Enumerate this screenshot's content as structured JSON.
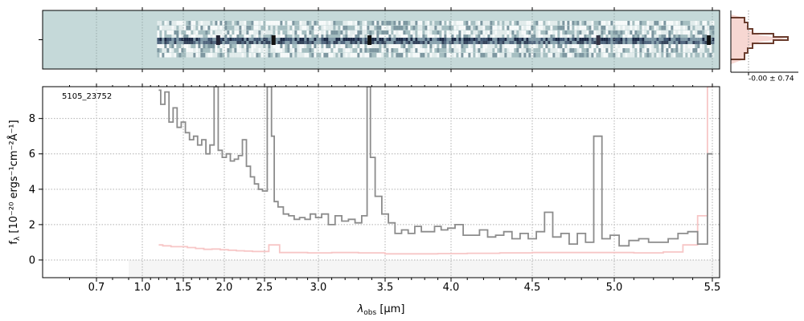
{
  "chart_data": {
    "type": "line",
    "object_id": "5105_23752",
    "xlabel_symbol": "λ",
    "xlabel_sub": "obs",
    "xlabel_unit": " [μm]",
    "ylabel_main": "f",
    "ylabel_sub": "λ",
    "ylabel_unit": " [10⁻²⁰ ergs⁻¹cm⁻²Å⁻¹]",
    "x_scale": "nonlinear (prism resolution)",
    "x_ticks": [
      "0.7",
      "1.0",
      "1.5",
      "2.0",
      "2.5",
      "3.0",
      "3.5",
      "4.0",
      "4.5",
      "5.0",
      "5.5"
    ],
    "x_tick_values": [
      0.7,
      1.0,
      1.5,
      2.0,
      2.5,
      3.0,
      3.5,
      4.0,
      4.5,
      5.0,
      5.5
    ],
    "xlim": [
      0.5,
      5.55
    ],
    "ylim": [
      -1.0,
      9.8
    ],
    "y_ticks": [
      "0",
      "2",
      "4",
      "6",
      "8"
    ],
    "y_tick_values": [
      0,
      2,
      4,
      6,
      8
    ],
    "grid": true,
    "colors": {
      "flux": "#8c8c8c",
      "error": "#f7c6c6",
      "hist_line": "#6b3d2e",
      "hist_fill": "#f7d7d2",
      "twod_bg": "#c5d9d9"
    },
    "series": [
      {
        "role": "flux",
        "x": [
          1.2,
          1.25,
          1.3,
          1.35,
          1.4,
          1.45,
          1.5,
          1.55,
          1.6,
          1.65,
          1.7,
          1.75,
          1.8,
          1.85,
          1.9,
          1.95,
          2.0,
          2.05,
          2.1,
          2.15,
          2.2,
          2.25,
          2.3,
          2.35,
          2.4,
          2.45,
          2.5,
          2.55,
          2.58,
          2.6,
          2.65,
          2.7,
          2.75,
          2.8,
          2.85,
          2.9,
          2.95,
          3.0,
          3.05,
          3.1,
          3.15,
          3.2,
          3.25,
          3.3,
          3.35,
          3.38,
          3.4,
          3.45,
          3.5,
          3.55,
          3.6,
          3.65,
          3.7,
          3.75,
          3.8,
          3.85,
          3.9,
          3.95,
          4.0,
          4.05,
          4.1,
          4.15,
          4.2,
          4.25,
          4.3,
          4.35,
          4.4,
          4.45,
          4.5,
          4.55,
          4.6,
          4.65,
          4.7,
          4.75,
          4.8,
          4.85,
          4.9,
          4.95,
          5.0,
          5.05,
          5.1,
          5.15,
          5.2,
          5.25,
          5.3,
          5.35,
          5.4,
          5.45,
          5.5
        ],
        "y": [
          9.6,
          8.8,
          9.5,
          7.8,
          8.6,
          7.5,
          7.8,
          7.2,
          6.8,
          7.0,
          6.5,
          6.8,
          6.0,
          6.5,
          9.8,
          6.2,
          5.8,
          6.0,
          5.6,
          5.7,
          5.9,
          6.8,
          5.3,
          4.7,
          4.3,
          4.0,
          3.9,
          9.8,
          7.0,
          3.3,
          3.0,
          2.6,
          2.5,
          2.3,
          2.4,
          2.3,
          2.6,
          2.4,
          2.6,
          2.0,
          2.5,
          2.2,
          2.3,
          2.1,
          2.5,
          9.8,
          5.8,
          3.6,
          2.6,
          2.1,
          1.5,
          1.7,
          1.5,
          1.9,
          1.6,
          1.6,
          1.9,
          1.7,
          1.8,
          2.0,
          1.4,
          1.4,
          1.7,
          1.3,
          1.4,
          1.6,
          1.2,
          1.5,
          1.2,
          1.6,
          2.7,
          1.3,
          1.5,
          0.9,
          1.5,
          1.0,
          7.0,
          1.2,
          1.4,
          0.8,
          1.1,
          1.2,
          1.0,
          1.0,
          1.2,
          1.5,
          1.6,
          0.9,
          6.0
        ]
      },
      {
        "role": "error",
        "x": [
          1.2,
          1.3,
          1.4,
          1.5,
          1.6,
          1.7,
          1.8,
          1.9,
          2.0,
          2.1,
          2.2,
          2.3,
          2.4,
          2.5,
          2.58,
          2.7,
          2.8,
          3.0,
          3.2,
          3.4,
          3.6,
          3.8,
          4.0,
          4.2,
          4.4,
          4.6,
          4.8,
          5.0,
          5.2,
          5.3,
          5.4,
          5.45,
          5.5
        ],
        "y": [
          0.85,
          0.8,
          0.75,
          0.75,
          0.7,
          0.65,
          0.6,
          0.62,
          0.58,
          0.55,
          0.52,
          0.5,
          0.48,
          0.48,
          0.85,
          0.42,
          0.42,
          0.4,
          0.42,
          0.4,
          0.35,
          0.35,
          0.36,
          0.38,
          0.4,
          0.42,
          0.42,
          0.42,
          0.4,
          0.45,
          0.85,
          2.5,
          9.8
        ]
      }
    ],
    "inset_label": "-0.00 ± 0.74"
  }
}
